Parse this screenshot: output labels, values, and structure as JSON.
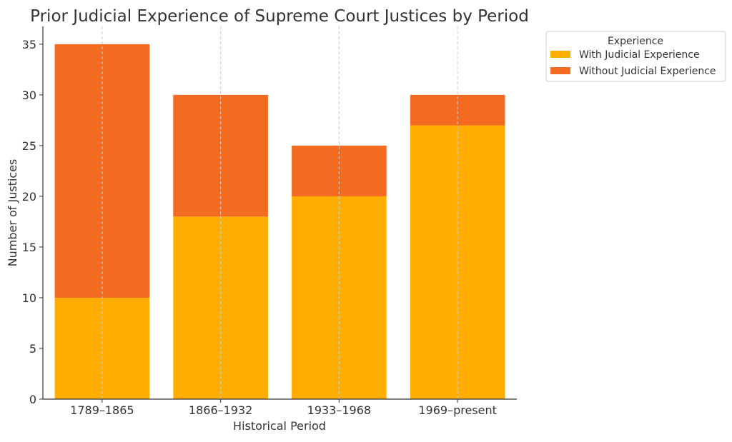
{
  "chart_data": {
    "type": "bar",
    "stacked": true,
    "title": "Prior Judicial Experience of Supreme Court Justices by Period",
    "xlabel": "Historical Period",
    "ylabel": "Number of Justices",
    "categories": [
      "1789–1865",
      "1866–1932",
      "1933–1968",
      "1969–present"
    ],
    "series": [
      {
        "name": "With Judicial Experience",
        "values": [
          10,
          18,
          20,
          27
        ],
        "color": "#ffad00"
      },
      {
        "name": "Without Judicial Experience",
        "values": [
          25,
          12,
          5,
          3
        ],
        "color": "#f26b21"
      }
    ],
    "ylim": [
      0,
      36.75
    ],
    "yticks": [
      0,
      5,
      10,
      15,
      20,
      25,
      30,
      35
    ],
    "grid": "x-dashed",
    "legend": {
      "title": "Experience",
      "placement": "outside-top-right"
    },
    "colors": {
      "text": "#333333",
      "axis": "#333333",
      "grid": "#cccccc"
    }
  }
}
